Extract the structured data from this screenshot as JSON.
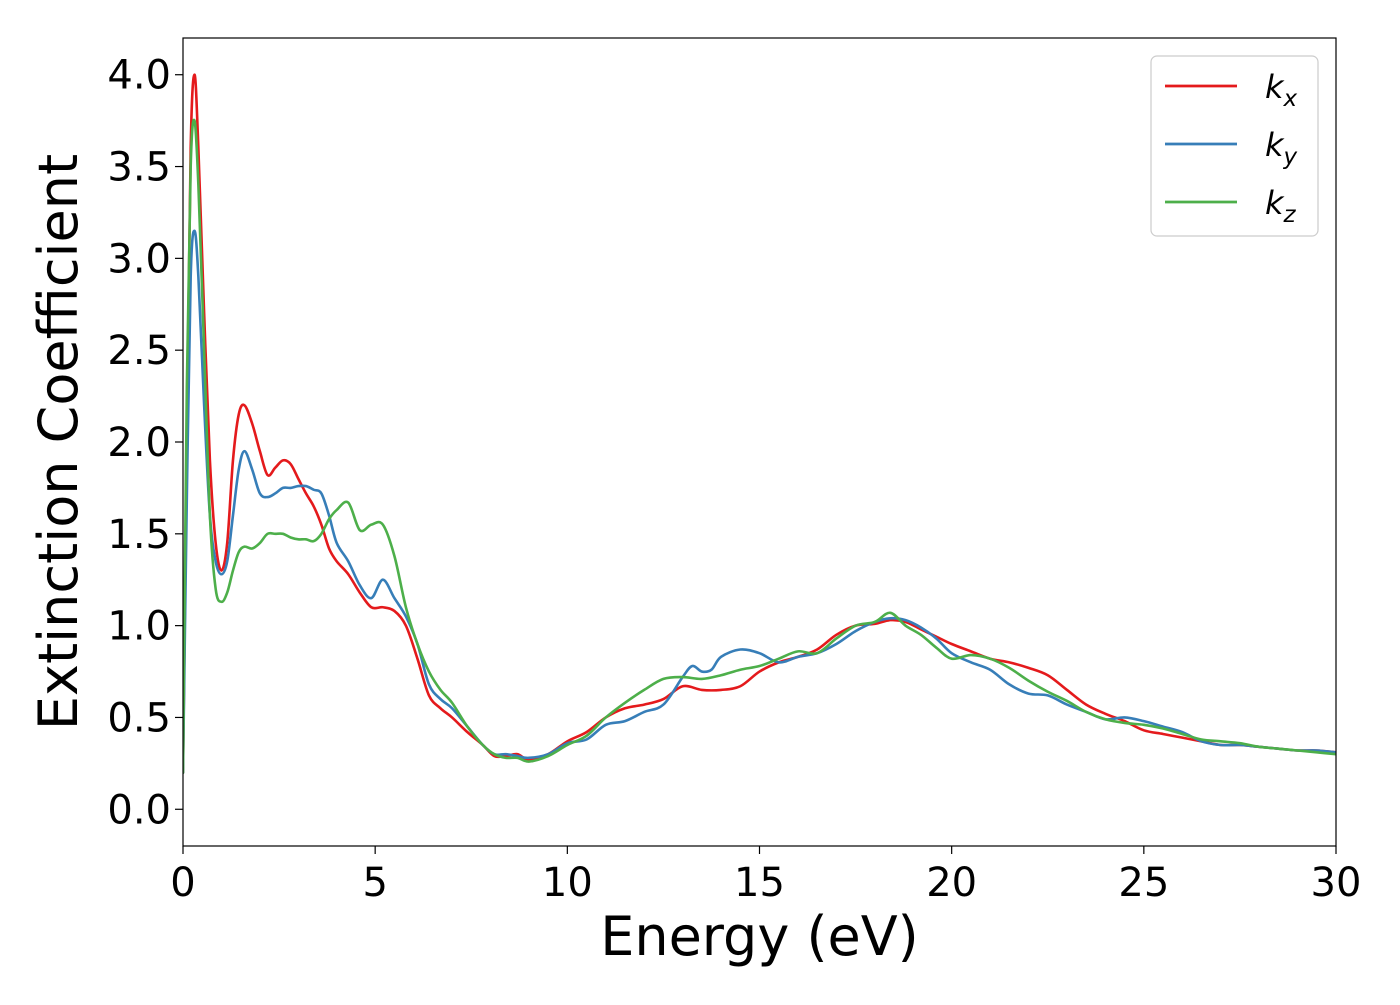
{
  "chart_data": {
    "type": "line",
    "title": "",
    "xlabel": "Energy (eV)",
    "ylabel": "Extinction Coefficient",
    "xlim": [
      0,
      30
    ],
    "ylim": [
      -0.2,
      4.2
    ],
    "xticks": [
      0,
      5,
      10,
      15,
      20,
      25,
      30
    ],
    "xtick_labels": [
      "0",
      "5",
      "10",
      "15",
      "20",
      "25",
      "30"
    ],
    "yticks": [
      0.0,
      0.5,
      1.0,
      1.5,
      2.0,
      2.5,
      3.0,
      3.5,
      4.0
    ],
    "ytick_labels": [
      "0.0",
      "0.5",
      "1.0",
      "1.5",
      "2.0",
      "2.5",
      "3.0",
      "3.5",
      "4.0"
    ],
    "grid": false,
    "legend_position": "top-right",
    "series": [
      {
        "name": "k_x",
        "label_base": "k",
        "label_sub": "x",
        "color": "#e41a1c",
        "x": [
          0,
          0.1,
          0.2,
          0.3,
          0.4,
          0.55,
          0.7,
          0.85,
          1.0,
          1.15,
          1.3,
          1.45,
          1.6,
          1.8,
          2.0,
          2.2,
          2.4,
          2.6,
          2.8,
          3.0,
          3.2,
          3.4,
          3.6,
          3.8,
          4.0,
          4.3,
          4.6,
          4.9,
          5.2,
          5.5,
          5.8,
          6.1,
          6.4,
          6.7,
          7.0,
          7.4,
          7.8,
          8.1,
          8.4,
          8.7,
          9.0,
          9.5,
          10.0,
          10.5,
          11.0,
          11.5,
          12.0,
          12.5,
          13.0,
          13.5,
          14.0,
          14.5,
          15.0,
          15.5,
          16.0,
          16.5,
          17.0,
          17.5,
          18.0,
          18.4,
          18.8,
          19.2,
          19.6,
          20.0,
          20.5,
          21.0,
          21.5,
          22.0,
          22.5,
          23.0,
          23.5,
          24.0,
          24.5,
          25.0,
          25.5,
          26.0,
          26.5,
          27.0,
          27.5,
          28.0,
          28.5,
          29.0,
          29.5,
          30.0
        ],
        "y": [
          0.2,
          2.0,
          3.6,
          4.0,
          3.6,
          2.7,
          1.9,
          1.45,
          1.3,
          1.45,
          1.9,
          2.15,
          2.2,
          2.1,
          1.95,
          1.82,
          1.86,
          1.9,
          1.88,
          1.8,
          1.72,
          1.65,
          1.55,
          1.42,
          1.35,
          1.28,
          1.18,
          1.1,
          1.1,
          1.08,
          1.0,
          0.82,
          0.62,
          0.55,
          0.5,
          0.42,
          0.35,
          0.29,
          0.29,
          0.3,
          0.27,
          0.3,
          0.37,
          0.42,
          0.5,
          0.55,
          0.57,
          0.6,
          0.67,
          0.65,
          0.65,
          0.67,
          0.75,
          0.8,
          0.83,
          0.87,
          0.95,
          1.0,
          1.01,
          1.03,
          1.02,
          0.98,
          0.94,
          0.9,
          0.86,
          0.82,
          0.8,
          0.77,
          0.73,
          0.65,
          0.57,
          0.52,
          0.48,
          0.43,
          0.41,
          0.39,
          0.37,
          0.35,
          0.35,
          0.34,
          0.33,
          0.32,
          0.32,
          0.31
        ]
      },
      {
        "name": "k_y",
        "label_base": "k",
        "label_sub": "y",
        "color": "#377eb8",
        "x": [
          0,
          0.1,
          0.2,
          0.3,
          0.4,
          0.55,
          0.7,
          0.85,
          1.0,
          1.15,
          1.3,
          1.45,
          1.6,
          1.8,
          2.0,
          2.2,
          2.4,
          2.6,
          2.8,
          3.0,
          3.2,
          3.4,
          3.6,
          3.8,
          4.0,
          4.3,
          4.6,
          4.9,
          5.2,
          5.5,
          5.8,
          6.1,
          6.4,
          6.7,
          7.0,
          7.4,
          7.8,
          8.1,
          8.4,
          8.7,
          9.0,
          9.5,
          10.0,
          10.5,
          11.0,
          11.5,
          12.0,
          12.5,
          13.0,
          13.25,
          13.5,
          13.75,
          14.0,
          14.5,
          15.0,
          15.5,
          16.0,
          16.5,
          17.0,
          17.5,
          18.0,
          18.4,
          18.8,
          19.2,
          19.6,
          20.0,
          20.5,
          21.0,
          21.5,
          22.0,
          22.5,
          23.0,
          23.5,
          24.0,
          24.5,
          25.0,
          25.5,
          26.0,
          26.5,
          27.0,
          27.5,
          28.0,
          28.5,
          29.0,
          29.5,
          30.0
        ],
        "y": [
          0.2,
          1.7,
          2.9,
          3.15,
          2.9,
          2.2,
          1.6,
          1.35,
          1.28,
          1.35,
          1.6,
          1.85,
          1.95,
          1.85,
          1.72,
          1.7,
          1.72,
          1.75,
          1.75,
          1.76,
          1.76,
          1.74,
          1.72,
          1.6,
          1.45,
          1.35,
          1.22,
          1.15,
          1.25,
          1.15,
          1.05,
          0.9,
          0.68,
          0.6,
          0.55,
          0.45,
          0.35,
          0.3,
          0.3,
          0.29,
          0.28,
          0.3,
          0.36,
          0.38,
          0.46,
          0.48,
          0.53,
          0.57,
          0.72,
          0.78,
          0.75,
          0.76,
          0.83,
          0.87,
          0.85,
          0.8,
          0.83,
          0.85,
          0.9,
          0.97,
          1.02,
          1.04,
          1.03,
          0.99,
          0.93,
          0.85,
          0.8,
          0.76,
          0.68,
          0.63,
          0.62,
          0.57,
          0.53,
          0.49,
          0.5,
          0.48,
          0.45,
          0.42,
          0.37,
          0.35,
          0.35,
          0.34,
          0.33,
          0.32,
          0.32,
          0.31
        ]
      },
      {
        "name": "k_z",
        "label_base": "k",
        "label_sub": "z",
        "color": "#4daf4a",
        "x": [
          0,
          0.1,
          0.2,
          0.3,
          0.4,
          0.55,
          0.7,
          0.85,
          1.0,
          1.15,
          1.3,
          1.45,
          1.6,
          1.8,
          2.0,
          2.2,
          2.4,
          2.6,
          2.8,
          3.0,
          3.2,
          3.4,
          3.6,
          3.8,
          4.0,
          4.3,
          4.6,
          4.9,
          5.2,
          5.5,
          5.8,
          6.1,
          6.4,
          6.7,
          7.0,
          7.4,
          7.8,
          8.1,
          8.4,
          8.7,
          9.0,
          9.5,
          10.0,
          10.5,
          11.0,
          11.5,
          12.0,
          12.5,
          13.0,
          13.5,
          14.0,
          14.5,
          15.0,
          15.5,
          16.0,
          16.5,
          17.0,
          17.5,
          18.0,
          18.4,
          18.8,
          19.2,
          19.6,
          20.0,
          20.5,
          21.0,
          21.5,
          22.0,
          22.5,
          23.0,
          23.5,
          24.0,
          24.5,
          25.0,
          25.5,
          26.0,
          26.5,
          27.0,
          27.5,
          28.0,
          28.5,
          29.0,
          29.5,
          30.0
        ],
        "y": [
          0.2,
          2.3,
          3.5,
          3.75,
          3.4,
          2.5,
          1.6,
          1.2,
          1.13,
          1.18,
          1.3,
          1.4,
          1.43,
          1.42,
          1.45,
          1.5,
          1.5,
          1.5,
          1.48,
          1.47,
          1.47,
          1.46,
          1.5,
          1.58,
          1.63,
          1.67,
          1.52,
          1.55,
          1.55,
          1.38,
          1.1,
          0.9,
          0.75,
          0.65,
          0.58,
          0.45,
          0.35,
          0.3,
          0.28,
          0.28,
          0.26,
          0.29,
          0.35,
          0.4,
          0.5,
          0.58,
          0.65,
          0.71,
          0.72,
          0.71,
          0.73,
          0.76,
          0.78,
          0.82,
          0.86,
          0.85,
          0.93,
          1.0,
          1.02,
          1.07,
          1.0,
          0.95,
          0.88,
          0.82,
          0.84,
          0.82,
          0.77,
          0.7,
          0.64,
          0.59,
          0.53,
          0.49,
          0.47,
          0.46,
          0.44,
          0.41,
          0.38,
          0.37,
          0.36,
          0.34,
          0.33,
          0.32,
          0.31,
          0.3
        ]
      }
    ]
  }
}
